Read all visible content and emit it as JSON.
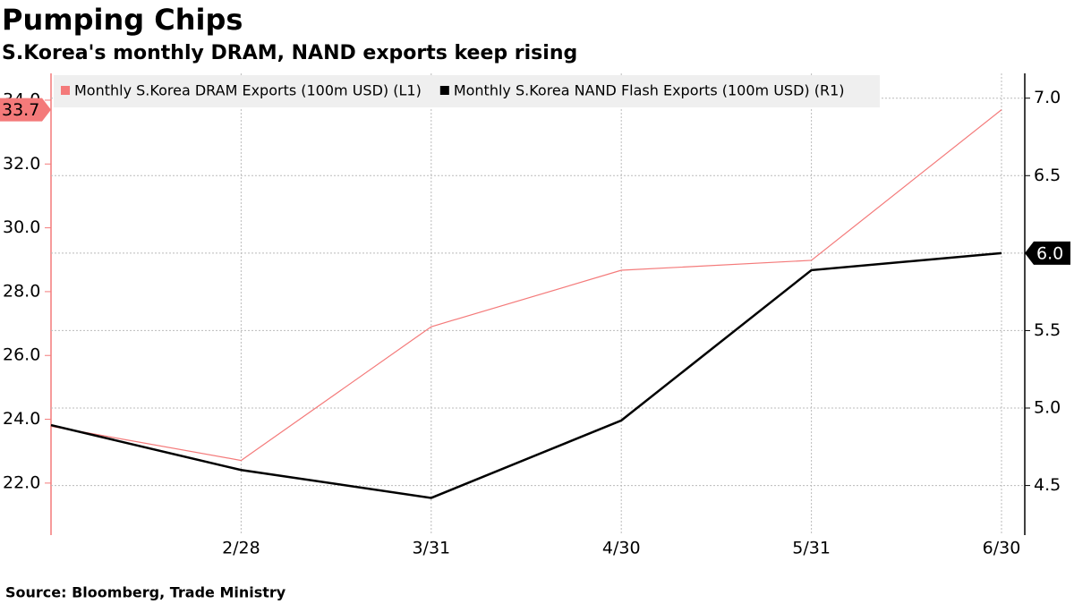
{
  "chart_data": {
    "type": "line",
    "title": "Pumping Chips",
    "subtitle": "S.Korea's monthly DRAM, NAND exports keep rising",
    "source": "Source: Bloomberg, Trade Ministry",
    "categories": [
      null,
      "2/28",
      "3/31",
      "4/30",
      "5/31",
      "6/30"
    ],
    "series": [
      {
        "name": "Monthly S.Korea DRAM Exports (100m USD)  (L1)",
        "color": "#f47a7a",
        "axis": "y",
        "values": [
          23.78,
          22.71,
          26.9,
          28.67,
          28.98,
          33.7
        ],
        "value_labels": [
          null,
          null,
          null,
          null,
          null,
          "33.7"
        ]
      },
      {
        "name": "Monthly S.Korea NAND Flash Exports (100m USD) (R1)",
        "color": "#000000",
        "axis": "y2",
        "values": [
          4.89,
          4.6,
          4.42,
          4.92,
          5.89,
          6.0
        ],
        "value_labels": [
          null,
          null,
          null,
          null,
          null,
          "6.0"
        ]
      }
    ],
    "ylim": [
      20.37,
      34.84
    ],
    "yticks": [
      {
        "value": 22,
        "label": "22.0"
      },
      {
        "value": 24,
        "label": "24.0"
      },
      {
        "value": 26,
        "label": "26.0"
      },
      {
        "value": 28,
        "label": "28.0"
      },
      {
        "value": 30,
        "label": "30.0"
      },
      {
        "value": 32,
        "label": "32.0"
      },
      {
        "value": 34,
        "label": "34.0"
      }
    ],
    "y2lim": [
      4.18,
      7.16
    ],
    "y2ticks": [
      4.5,
      {
        "value": 5,
        "label": "5.0"
      },
      5.5,
      {
        "value": 6,
        "label": "6.0"
      },
      6.5,
      {
        "value": 7,
        "label": "7.0"
      }
    ],
    "grid": true
  }
}
